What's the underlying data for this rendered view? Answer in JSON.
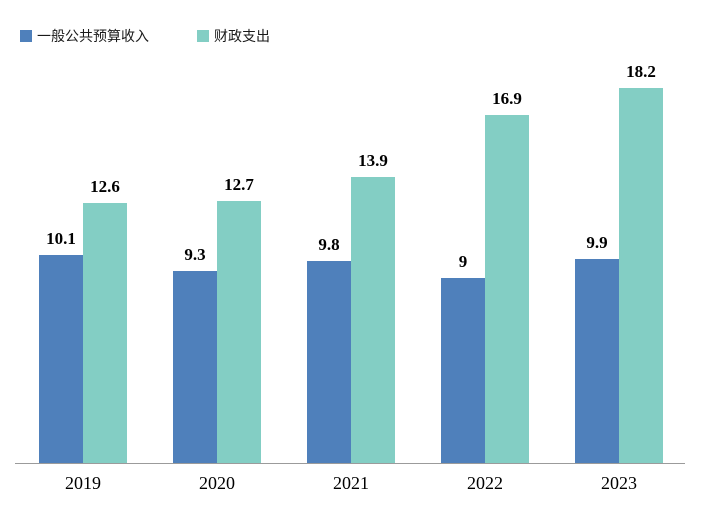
{
  "legend": {
    "items": [
      {
        "label": "一般公共预算收入",
        "color": "#4F80BB"
      },
      {
        "label": "财政支出",
        "color": "#83CEC4"
      }
    ]
  },
  "chart_data": {
    "type": "bar",
    "title": "",
    "xlabel": "",
    "ylabel": "",
    "categories": [
      "2019",
      "2020",
      "2021",
      "2022",
      "2023"
    ],
    "series": [
      {
        "name": "一般公共预算收入",
        "color": "#4F80BB",
        "values": [
          10.1,
          9.3,
          9.8,
          9,
          9.9
        ]
      },
      {
        "name": "财政支出",
        "color": "#83CEC4",
        "values": [
          12.6,
          12.7,
          13.9,
          16.9,
          18.2
        ]
      }
    ],
    "ylim": [
      0,
      20
    ],
    "grid": false,
    "y_axis_visible": false,
    "data_labels": true,
    "legend_position": "top-left",
    "axis_line_color": "#9b9b9b",
    "label_color": "#000000"
  }
}
